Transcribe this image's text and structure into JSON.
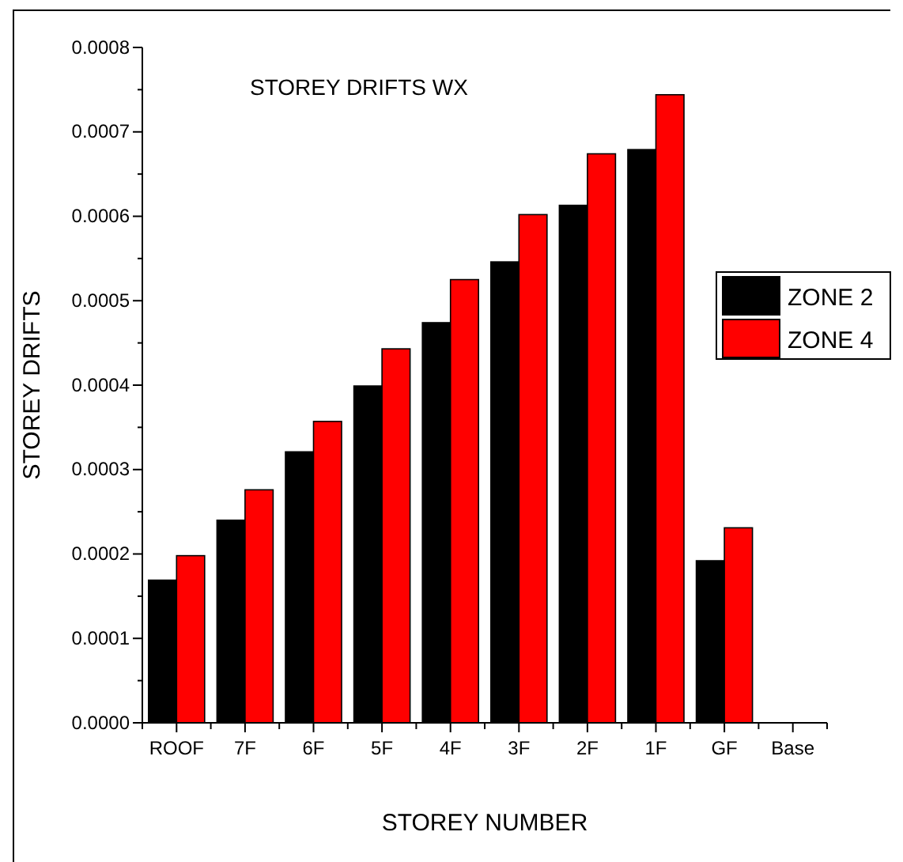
{
  "chart_data": {
    "type": "bar",
    "title": "STOREY DRIFTS WX",
    "xlabel": "STOREY NUMBER",
    "ylabel": "STOREY DRIFTS",
    "categories": [
      "ROOF",
      "7F",
      "6F",
      "5F",
      "4F",
      "3F",
      "2F",
      "1F",
      "GF",
      "Base"
    ],
    "series": [
      {
        "name": "ZONE 2",
        "color": "#000000",
        "values": [
          0.000169,
          0.00024,
          0.000321,
          0.000399,
          0.000474,
          0.000546,
          0.000613,
          0.000679,
          0.000192,
          0
        ]
      },
      {
        "name": "ZONE 4",
        "color": "#ff0000",
        "values": [
          0.000198,
          0.000276,
          0.000357,
          0.000443,
          0.000525,
          0.000602,
          0.000674,
          0.000744,
          0.000231,
          0
        ]
      }
    ],
    "ylim": [
      0,
      0.0008
    ],
    "yticks": [
      {
        "value": 0,
        "label": "0.0000"
      },
      {
        "value": 5e-05,
        "label": null
      },
      {
        "value": 0.0001,
        "label": "0.0001"
      },
      {
        "value": 0.00015,
        "label": null
      },
      {
        "value": 0.0002,
        "label": "0.0002"
      },
      {
        "value": 0.00025,
        "label": null
      },
      {
        "value": 0.0003,
        "label": "0.0003"
      },
      {
        "value": 0.00035,
        "label": null
      },
      {
        "value": 0.0004,
        "label": "0.0004"
      },
      {
        "value": 0.00045,
        "label": null
      },
      {
        "value": 0.0005,
        "label": "0.0005"
      },
      {
        "value": 0.00055,
        "label": null
      },
      {
        "value": 0.0006,
        "label": "0.0006"
      },
      {
        "value": 0.00065,
        "label": null
      },
      {
        "value": 0.0007,
        "label": "0.0007"
      },
      {
        "value": 0.00075,
        "label": null
      },
      {
        "value": 0.0008,
        "label": "0.0008"
      }
    ],
    "grid": false,
    "legend": "right"
  }
}
